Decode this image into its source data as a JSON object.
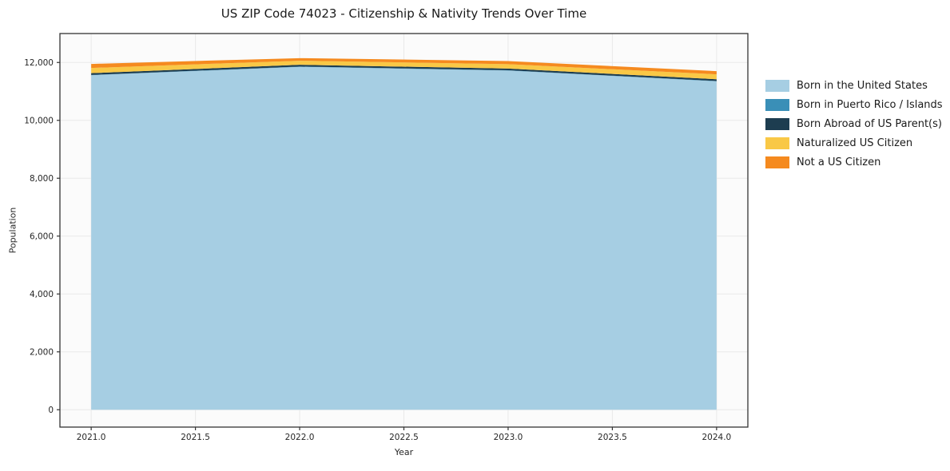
{
  "title": "US ZIP Code 74023 - Citizenship & Nativity Trends Over Time",
  "chart_data": {
    "type": "area",
    "stacked": true,
    "title": "US ZIP Code 74023 - Citizenship & Nativity Trends Over Time",
    "xlabel": "Year",
    "ylabel": "Population",
    "x": [
      2021,
      2022,
      2023,
      2024
    ],
    "series": [
      {
        "name": "Born in the United States",
        "color": "#a6cee3",
        "values": [
          11560,
          11850,
          11720,
          11350
        ]
      },
      {
        "name": "Born in Puerto Rico / Islands",
        "color": "#3a8fb7",
        "values": [
          10,
          10,
          10,
          10
        ]
      },
      {
        "name": "Born Abroad of US Parent(s)",
        "color": "#1d3d50",
        "values": [
          60,
          60,
          60,
          60
        ]
      },
      {
        "name": "Naturalized US Citizen",
        "color": "#f9c846",
        "values": [
          180,
          140,
          150,
          170
        ]
      },
      {
        "name": "Not a US Citizen",
        "color": "#f58a1f",
        "values": [
          140,
          90,
          110,
          110
        ]
      }
    ],
    "totals": [
      11950,
      12150,
      12050,
      11700
    ],
    "xlim": [
      2020.85,
      2024.15
    ],
    "ylim": [
      -600,
      13000
    ],
    "x_ticks": [
      2021.0,
      2021.5,
      2022.0,
      2022.5,
      2023.0,
      2023.5,
      2024.0
    ],
    "x_tick_labels": [
      "2021.0",
      "2021.5",
      "2022.0",
      "2022.5",
      "2023.0",
      "2023.5",
      "2024.0"
    ],
    "y_ticks": [
      0,
      2000,
      4000,
      6000,
      8000,
      10000,
      12000
    ],
    "y_tick_labels": [
      "0",
      "2,000",
      "4,000",
      "6,000",
      "8,000",
      "10,000",
      "12,000"
    ],
    "grid": true,
    "legend_position": "right"
  },
  "colors": {
    "plot_background": "#fbfbfb",
    "grid": "#e9e9e9",
    "spine": "#333333",
    "tick_text": "#262626"
  }
}
